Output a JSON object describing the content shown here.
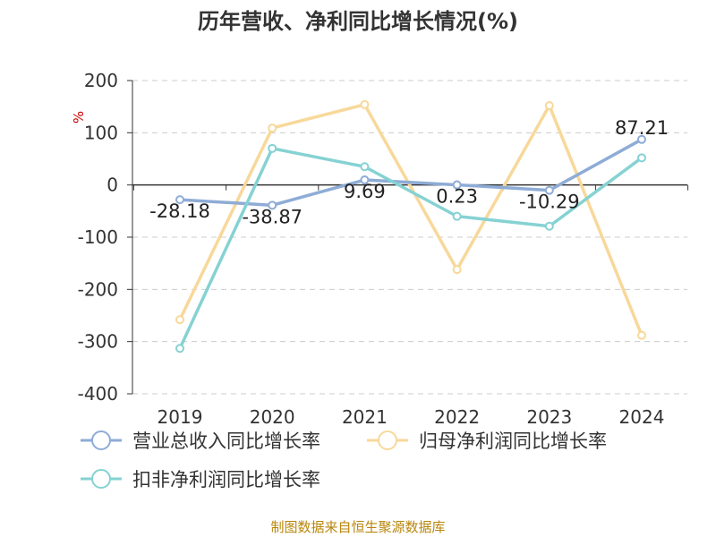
{
  "title": "历年营收、净利同比增长情况(%)",
  "source": "制图数据来自恒生聚源数据库",
  "colors": {
    "revenue": "#8eacd6",
    "net_profit": "#f8d89a",
    "deducted_net_profit": "#86d2d3",
    "axis": "#333333",
    "grid": "#cccccc",
    "unit": "#cc0000",
    "source": "#b8860b"
  },
  "chart_data": {
    "type": "line",
    "title": "历年营收、净利同比增长情况(%)",
    "xlabel": "",
    "ylabel": "%",
    "ylim": [
      -400,
      200
    ],
    "yticks": [
      200,
      100,
      0,
      -100,
      -200,
      -300,
      -400
    ],
    "grid": true,
    "legend_position": "bottom",
    "categories": [
      "2019",
      "2020",
      "2021",
      "2022",
      "2023",
      "2024"
    ],
    "series": [
      {
        "name": "营业总收入同比增长率",
        "values": [
          -28.18,
          -38.87,
          9.69,
          0.23,
          -10.29,
          87.21
        ],
        "labels": [
          "-28.18",
          "-38.87",
          "9.69",
          "0.23",
          "-10.29",
          "87.21"
        ]
      },
      {
        "name": "归母净利润同比增长率",
        "values": [
          -258,
          109,
          154,
          -162,
          152,
          -288
        ]
      },
      {
        "name": "扣非净利润同比增长率",
        "values": [
          -313,
          70,
          35,
          -60,
          -79,
          52
        ]
      }
    ]
  }
}
